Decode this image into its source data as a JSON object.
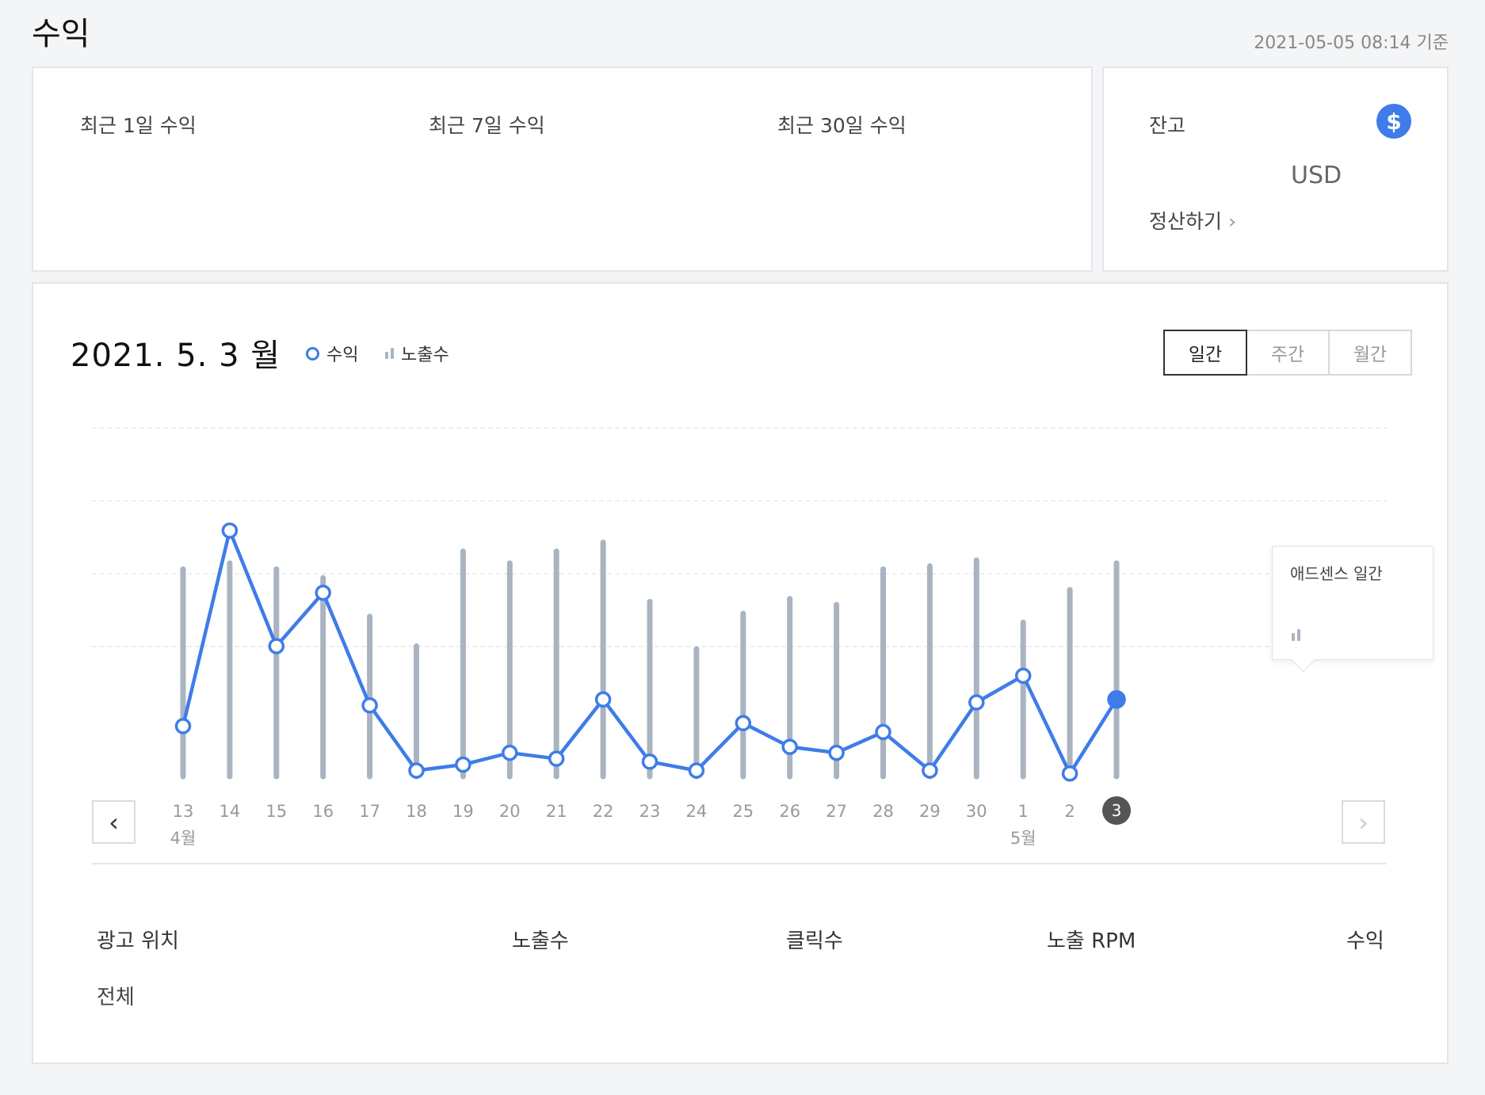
{
  "page": {
    "title": "수익",
    "updated": "2021-05-05 08:14 기준"
  },
  "summary": {
    "metrics": [
      {
        "label": "최근 1일 수익"
      },
      {
        "label": "최근 7일 수익"
      },
      {
        "label": "최근 30일 수익"
      }
    ]
  },
  "balance": {
    "label": "잔고",
    "icon": "$",
    "currency": "USD",
    "settle_label": "정산하기",
    "settle_chevron": "›"
  },
  "chart_header": {
    "title": "2021. 5. 3 월",
    "legend_revenue": "수익",
    "legend_impressions": "노출수",
    "tabs": [
      "일간",
      "주간",
      "월간"
    ],
    "active_tab": "일간"
  },
  "navigation": {
    "prev": "‹",
    "next": "›"
  },
  "tooltip": {
    "title": "애드센스 일간"
  },
  "chart_data": {
    "type": "line+bar",
    "days": [
      "13",
      "14",
      "15",
      "16",
      "17",
      "18",
      "19",
      "20",
      "21",
      "22",
      "23",
      "24",
      "25",
      "26",
      "27",
      "28",
      "29",
      "30",
      "1",
      "2",
      "3"
    ],
    "month_labels": [
      {
        "index": 0,
        "text": "4월"
      },
      {
        "index": 18,
        "text": "5월"
      }
    ],
    "selected_index": 20,
    "series": [
      {
        "name": "수익",
        "type": "line",
        "color": "#3f7ce8",
        "values": [
          0.17,
          0.83,
          0.44,
          0.62,
          0.24,
          0.02,
          0.04,
          0.08,
          0.06,
          0.26,
          0.05,
          0.02,
          0.18,
          0.1,
          0.08,
          0.15,
          0.02,
          0.25,
          0.34,
          0.01,
          0.26
        ]
      },
      {
        "name": "노출수",
        "type": "bar",
        "color": "#aab4c1",
        "values": [
          0.7,
          0.72,
          0.7,
          0.67,
          0.54,
          0.44,
          0.76,
          0.72,
          0.76,
          0.79,
          0.59,
          0.43,
          0.55,
          0.6,
          0.58,
          0.7,
          0.71,
          0.73,
          0.52,
          0.63,
          0.72
        ]
      }
    ],
    "ylim": [
      0,
      1
    ],
    "grid": true
  },
  "table": {
    "headers": [
      "광고 위치",
      "노출수",
      "클릭수",
      "노출 RPM",
      "수익"
    ],
    "rows": [
      {
        "label": "전체"
      }
    ]
  }
}
